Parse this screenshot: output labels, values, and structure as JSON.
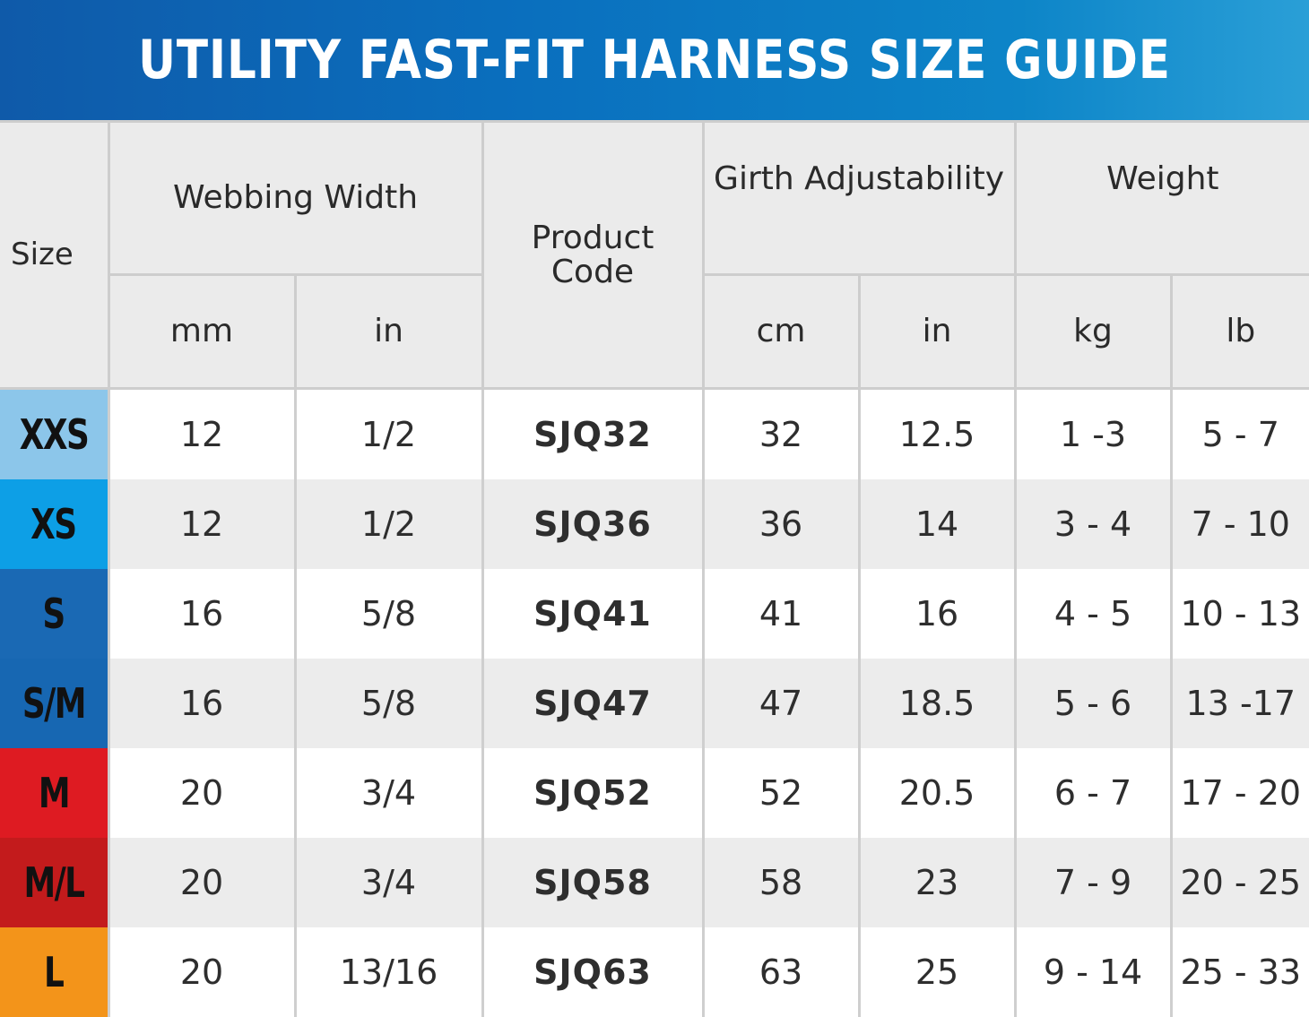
{
  "title": "UTILITY FAST-FIT HARNESS SIZE GUIDE",
  "headers": {
    "size": "Size",
    "webbing_width": "Webbing Width",
    "webbing_mm": "mm",
    "webbing_in": "in",
    "product_code": "Product Code",
    "girth": "Girth Adjustability",
    "girth_cm": "cm",
    "girth_in": "in",
    "weight": "Weight",
    "weight_kg": "kg",
    "weight_lb": "lb"
  },
  "rows": [
    {
      "size": "XXS",
      "mm": "12",
      "in": "1/2",
      "code": "SJQ32",
      "cm": "32",
      "girth_in": "12.5",
      "kg": "1 -3",
      "lb": "5 - 7",
      "color": "#8cc6ea"
    },
    {
      "size": "XS",
      "mm": "12",
      "in": "1/2",
      "code": "SJQ36",
      "cm": "36",
      "girth_in": "14",
      "kg": "3 - 4",
      "lb": "7 - 10",
      "color": "#0d9fe6"
    },
    {
      "size": "S",
      "mm": "16",
      "in": "5/8",
      "code": "SJQ41",
      "cm": "41",
      "girth_in": "16",
      "kg": "4 - 5",
      "lb": "10 - 13",
      "color": "#1a69b4"
    },
    {
      "size": "S/M",
      "mm": "16",
      "in": "5/8",
      "code": "SJQ47",
      "cm": "47",
      "girth_in": "18.5",
      "kg": "5 - 6",
      "lb": "13 -17",
      "color": "#1767b2"
    },
    {
      "size": "M",
      "mm": "20",
      "in": "3/4",
      "code": "SJQ52",
      "cm": "52",
      "girth_in": "20.5",
      "kg": "6 - 7",
      "lb": "17 - 20",
      "color": "#de1b22"
    },
    {
      "size": "M/L",
      "mm": "20",
      "in": "3/4",
      "code": "SJQ58",
      "cm": "58",
      "girth_in": "23",
      "kg": "7 - 9",
      "lb": "20 - 25",
      "color": "#c31b1c"
    },
    {
      "size": "L",
      "mm": "20",
      "in": "13/16",
      "code": "SJQ63",
      "cm": "63",
      "girth_in": "25",
      "kg": "9 - 14",
      "lb": "25 - 33",
      "color": "#f3941a"
    }
  ]
}
